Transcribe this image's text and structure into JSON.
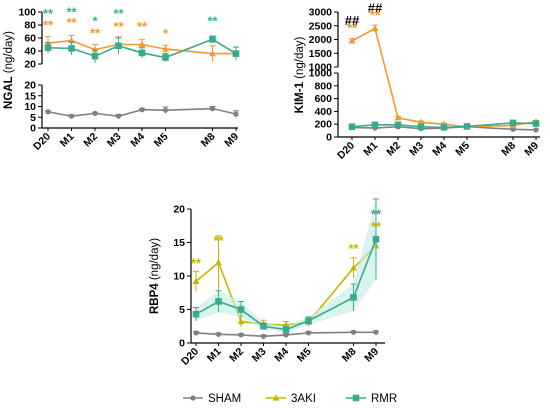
{
  "colors": {
    "SHAM": "#808080",
    "3AKI": "#c8b400",
    "RMR": "#3aaa8c",
    "orange": "#f39a2b",
    "teal_star": "#2ab894",
    "axis": "#000000"
  },
  "legend": {
    "entries": [
      {
        "name": "SHAM",
        "marker": "circle",
        "color": "#808080"
      },
      {
        "name": "3AKI",
        "marker": "triangle",
        "color": "#c8b400"
      },
      {
        "name": "RMR",
        "marker": "square",
        "color": "#3aaa8c"
      }
    ],
    "placement": "bottom-center"
  },
  "chart_data": [
    {
      "type": "line",
      "ylabel": "NGAL (ng/day)",
      "ylabel_bold": "NGAL",
      "ylabel_unit": " (ng/day)",
      "categories": [
        "D20",
        "M1",
        "M2",
        "M3",
        "M4",
        "M5",
        "M8",
        "M9"
      ],
      "x_positions": [
        0,
        1,
        2,
        3,
        4,
        5,
        7,
        8
      ],
      "broken_axis": true,
      "lower_ylim": [
        0,
        20
      ],
      "lower_ticks": [
        0,
        5,
        10,
        15,
        20
      ],
      "upper_ylim": [
        20,
        100
      ],
      "upper_ticks": [
        20,
        40,
        60,
        80,
        100
      ],
      "series": [
        {
          "name": "SHAM",
          "color": "#808080",
          "values": [
            7.5,
            5.5,
            6.8,
            5.5,
            8.5,
            8.3,
            9,
            6.5
          ],
          "err": [
            0.5,
            0.6,
            0.5,
            0.8,
            0.5,
            1.5,
            1,
            1.5
          ]
        },
        {
          "name": "3AKI",
          "color": "#f39a2b",
          "values": [
            52,
            56,
            42,
            50,
            50,
            43,
            36,
            36
          ],
          "err": [
            10,
            8,
            8,
            12,
            8,
            6,
            12,
            10
          ]
        },
        {
          "name": "RMR",
          "color": "#3aaa8c",
          "values": [
            45,
            44,
            32,
            48,
            37,
            30,
            58,
            36
          ],
          "err": [
            8,
            10,
            10,
            12,
            8,
            6,
            5,
            10
          ]
        }
      ],
      "annotations": [
        {
          "text": "**",
          "x": 0,
          "y": 91,
          "color": "#2ab894"
        },
        {
          "text": "**",
          "x": 1,
          "y": 93,
          "color": "#2ab894"
        },
        {
          "text": "*",
          "x": 2,
          "y": 79,
          "color": "#2ab894"
        },
        {
          "text": "**",
          "x": 3,
          "y": 91,
          "color": "#2ab894"
        },
        {
          "text": "**",
          "x": 7,
          "y": 79,
          "color": "#2ab894"
        },
        {
          "text": "**",
          "x": 0,
          "y": 73,
          "color": "#f39a2b"
        },
        {
          "text": "**",
          "x": 1,
          "y": 77,
          "color": "#f39a2b"
        },
        {
          "text": "**",
          "x": 2,
          "y": 61,
          "color": "#f39a2b"
        },
        {
          "text": "**",
          "x": 3,
          "y": 71,
          "color": "#f39a2b"
        },
        {
          "text": "**",
          "x": 4,
          "y": 71,
          "color": "#f39a2b"
        },
        {
          "text": "*",
          "x": 5,
          "y": 60,
          "color": "#f39a2b"
        }
      ]
    },
    {
      "type": "line",
      "ylabel": "KIM-1 (ng/day)",
      "ylabel_bold": "KIM-1",
      "ylabel_unit": " (ng/day)",
      "categories": [
        "D20",
        "M1",
        "M2",
        "M3",
        "M4",
        "M5",
        "M8",
        "M9"
      ],
      "x_positions": [
        0,
        1,
        2,
        3,
        4,
        5,
        7,
        8
      ],
      "broken_axis": true,
      "lower_ylim": [
        0,
        1000
      ],
      "lower_ticks": [
        0,
        200,
        400,
        600,
        800,
        1000
      ],
      "upper_ylim": [
        1000,
        3000
      ],
      "upper_ticks": [
        1000,
        1500,
        2000,
        2500,
        3000
      ],
      "series": [
        {
          "name": "SHAM",
          "color": "#808080",
          "values": [
            150,
            140,
            160,
            130,
            140,
            160,
            120,
            110
          ],
          "err": [
            10,
            10,
            10,
            10,
            10,
            10,
            10,
            10
          ]
        },
        {
          "name": "3AKI",
          "color": "#f39a2b",
          "values": [
            1950,
            2400,
            300,
            230,
            200,
            160,
            180,
            240
          ],
          "err": [
            80,
            120,
            20,
            20,
            20,
            15,
            20,
            20
          ]
        },
        {
          "name": "RMR",
          "color": "#3aaa8c",
          "values": [
            160,
            190,
            190,
            160,
            150,
            165,
            220,
            210
          ],
          "err": [
            20,
            20,
            20,
            15,
            15,
            15,
            20,
            20
          ]
        }
      ],
      "annotations": [
        {
          "text": "##",
          "x": 0,
          "y": 2520,
          "color": "#000000"
        },
        {
          "text": "**",
          "x": 0,
          "y": 2260,
          "color": "#f39a2b"
        },
        {
          "text": "##",
          "x": 1,
          "y": 2980,
          "color": "#000000"
        },
        {
          "text": "**",
          "x": 1,
          "y": 2720,
          "color": "#f39a2b"
        }
      ]
    },
    {
      "type": "line",
      "ylabel": "RBP4 (ng/day)",
      "ylabel_bold": "RBP4",
      "ylabel_unit": " (ng/day)",
      "categories": [
        "D20",
        "M1",
        "M2",
        "M3",
        "M4",
        "M5",
        "M8",
        "M9"
      ],
      "x_positions": [
        0,
        1,
        2,
        3,
        4,
        5,
        7,
        8
      ],
      "ylim": [
        0,
        20
      ],
      "ticks": [
        0,
        5,
        10,
        15,
        20
      ],
      "series": [
        {
          "name": "SHAM",
          "color": "#808080",
          "values": [
            1.5,
            1.3,
            1.2,
            1.0,
            1.2,
            1.5,
            1.6,
            1.6
          ],
          "err": [
            0.2,
            0.2,
            0.2,
            0.2,
            0.2,
            0.2,
            0.2,
            0.2
          ]
        },
        {
          "name": "3AKI",
          "color": "#c8b400",
          "values": [
            9.2,
            12.0,
            3.2,
            2.8,
            2.7,
            3.1,
            11.2,
            14.5
          ],
          "err": [
            1.5,
            4,
            0.8,
            0.6,
            0.5,
            0.6,
            1.5,
            5
          ]
        },
        {
          "name": "RMR",
          "color": "#3aaa8c",
          "values": [
            4.3,
            6.2,
            5.0,
            2.5,
            2.0,
            3.3,
            6.8,
            15.5
          ],
          "err": [
            1.0,
            1.6,
            1.2,
            0.5,
            0.5,
            0.6,
            2.0,
            6
          ]
        }
      ],
      "annotations": [
        {
          "text": "**",
          "x": 0,
          "y": 11.3,
          "color": "#c8b400"
        },
        {
          "text": "**",
          "x": 1,
          "y": 14.6,
          "color": "#c8b400"
        },
        {
          "text": "**",
          "x": 7,
          "y": 13.4,
          "color": "#c8b400"
        },
        {
          "text": "**",
          "x": 8,
          "y": 16.7,
          "color": "#c8b400"
        },
        {
          "text": "**",
          "x": 8,
          "y": 18.6,
          "color": "#3aaa8c"
        }
      ]
    }
  ]
}
